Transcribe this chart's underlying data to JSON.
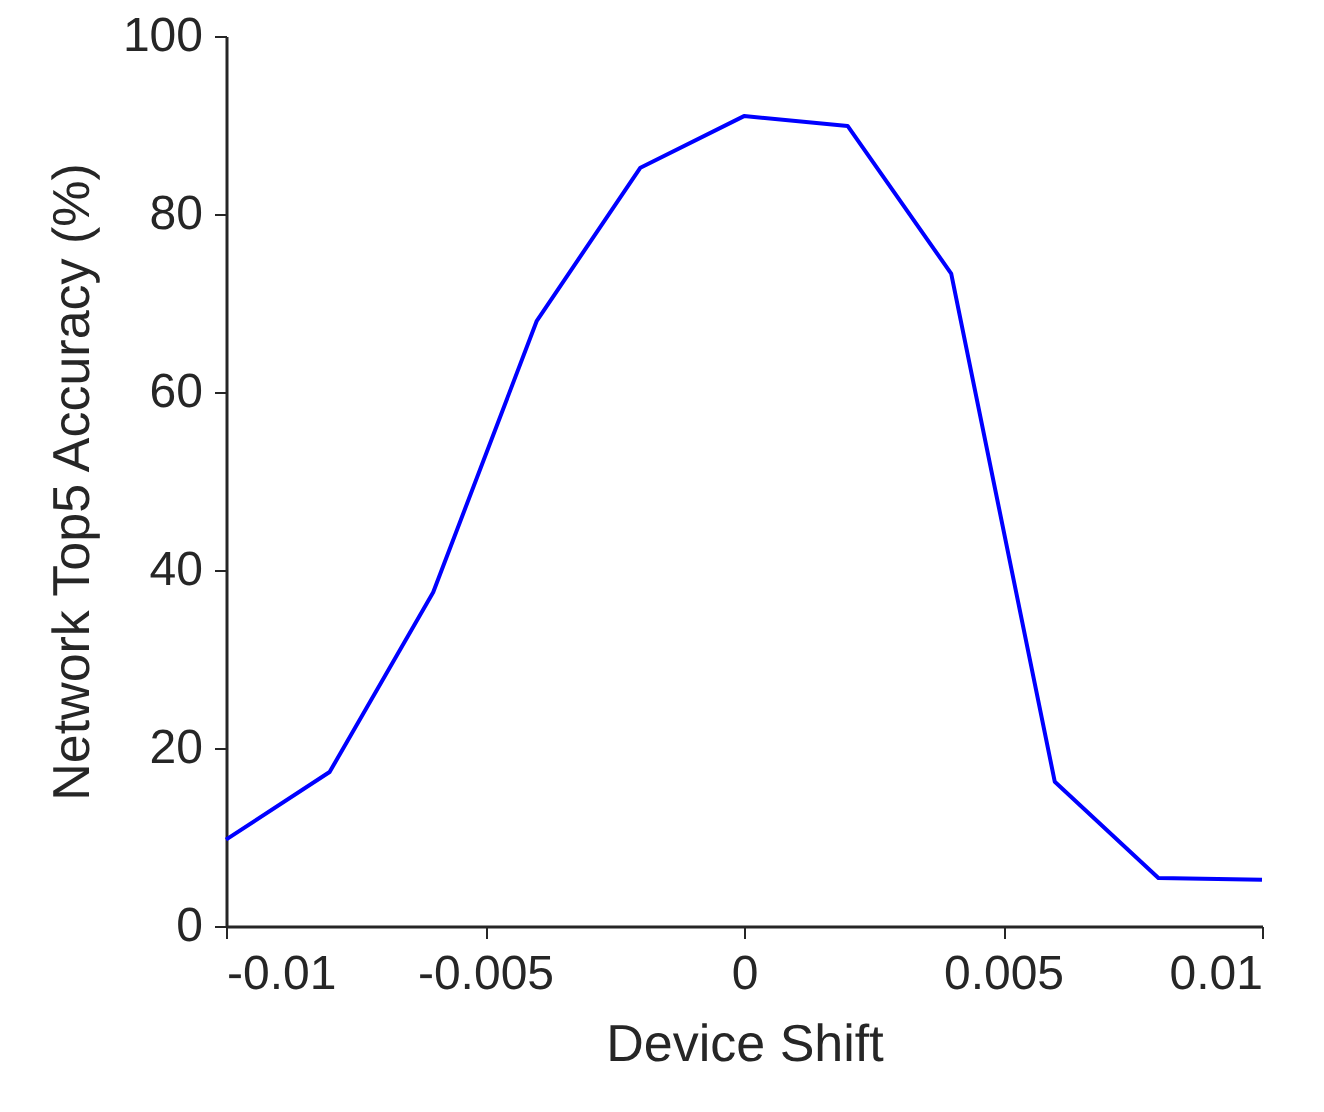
{
  "chart_data": {
    "type": "line",
    "xlabel": "Device Shift",
    "ylabel": "Network Top5 Accuracy (%)",
    "x": [
      -0.01,
      -0.008,
      -0.006,
      -0.004,
      -0.002,
      0,
      0.002,
      0.004,
      0.006,
      0.008,
      0.01
    ],
    "series": [
      {
        "color": "#0000ff",
        "values": [
          9.7,
          17.3,
          37.5,
          68,
          85.2,
          91,
          89.9,
          73.3,
          16.2,
          5.4,
          5.2
        ]
      }
    ],
    "xlim": [
      -0.01,
      0.01
    ],
    "xticks": [
      -0.01,
      -0.005,
      0,
      0.005,
      0.01
    ],
    "ylim": [
      0,
      100
    ],
    "yticks": [
      0,
      20,
      40,
      60,
      80,
      100
    ],
    "grid": false,
    "marker": "none",
    "line_style": "solid"
  }
}
